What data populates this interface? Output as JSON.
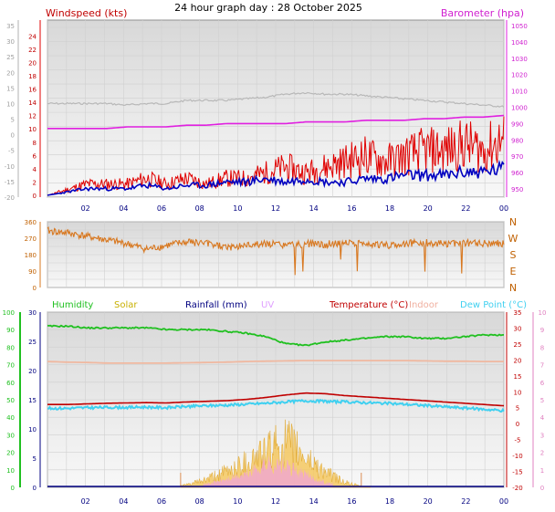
{
  "title": "24 hour graph day : 28 October 2025",
  "colors": {
    "wind": "#e00000",
    "wind_avg": "#0000c0",
    "baro": "#e020e0",
    "temp_shadow": "#b8b8b8",
    "dir": "#d87820",
    "humidity": "#20c020",
    "solar": "#c8b000",
    "rain": "#000080",
    "uv": "#e0a0ff",
    "temperature": "#c00000",
    "indoor": "#f0b8a0",
    "dew": "#40d0f0",
    "grid": "#d0d0d0",
    "panel": "#e8e8e8",
    "axis_left": "#a0a0a0"
  },
  "chart_data": [
    {
      "type": "line",
      "title": "24 hour graph day : 28 October 2025",
      "x_ticks": [
        "02",
        "04",
        "06",
        "08",
        "10",
        "12",
        "14",
        "16",
        "18",
        "20",
        "22",
        "00"
      ],
      "panel_left_label": "Windspeed (kts)",
      "panel_right_label": "Barometer (hpa)",
      "y_left_wind": {
        "ticks": [
          "24",
          "22",
          "20",
          "18",
          "16",
          "14",
          "12",
          "10",
          "8",
          "6",
          "4",
          "2",
          "0"
        ],
        "range": [
          0,
          25
        ]
      },
      "y_left_temp": {
        "ticks": [
          "35",
          "30",
          "25",
          "20",
          "15",
          "10",
          "5",
          "0",
          "-5",
          "-10",
          "-15",
          "-20"
        ],
        "range": [
          -20,
          35
        ]
      },
      "y_right_baro": {
        "ticks": [
          "1050",
          "1040",
          "1030",
          "1020",
          "1010",
          "1000",
          "990",
          "980",
          "970",
          "960",
          "950"
        ],
        "range": [
          945,
          1050
        ]
      },
      "series": [
        {
          "role": "wind_gust",
          "values": [
            0,
            1,
            2,
            2,
            2,
            3,
            2,
            3,
            2,
            3,
            3,
            4,
            5,
            4,
            5,
            6,
            7,
            6,
            7,
            8,
            8,
            9,
            8,
            10
          ]
        },
        {
          "role": "wind_avg",
          "values": [
            0,
            0.5,
            1,
            1,
            1,
            1.5,
            1,
            1.5,
            1.5,
            2,
            2,
            2.5,
            2,
            2.5,
            2,
            2,
            2.5,
            2.5,
            3,
            3,
            3,
            3.5,
            3.5,
            4
          ]
        },
        {
          "role": "baro",
          "values": [
            987,
            987,
            987,
            987,
            988,
            988,
            988,
            989,
            989,
            990,
            990,
            990,
            990,
            991,
            991,
            991,
            992,
            992,
            992,
            993,
            993,
            994,
            994,
            995
          ]
        },
        {
          "role": "temp_trace",
          "values": [
            10,
            10,
            10,
            10,
            9.5,
            10,
            10,
            11,
            11,
            11,
            11.5,
            12,
            13,
            13.5,
            13,
            13,
            12.5,
            12,
            11.5,
            11,
            10.5,
            10,
            9.5,
            9
          ]
        }
      ]
    },
    {
      "type": "scatter",
      "y_left_ticks": [
        "360",
        "270",
        "180",
        "90",
        "0"
      ],
      "y_right_ticks": [
        "N",
        "W",
        "S",
        "E",
        "N"
      ],
      "x_ticks": [
        "02",
        "04",
        "06",
        "08",
        "10",
        "12",
        "14",
        "16",
        "18",
        "20",
        "22",
        "00"
      ],
      "series": [
        {
          "role": "wind_dir",
          "values": [
            310,
            300,
            280,
            260,
            240,
            210,
            230,
            250,
            240,
            220,
            230,
            240,
            230,
            240,
            235,
            250,
            240,
            230,
            240,
            245,
            240,
            245,
            240,
            240
          ]
        }
      ]
    },
    {
      "type": "area",
      "labels": {
        "humidity": "Humidity",
        "solar": "Solar",
        "rainfall": "Rainfall (mm)",
        "uv": "UV",
        "temperature": "Temperature (°C)",
        "indoor": "Indoor",
        "dew": "Dew Point (°C)"
      },
      "y_left_hum": [
        "100",
        "90",
        "80",
        "70",
        "60",
        "50",
        "40",
        "30",
        "20",
        "10",
        "0"
      ],
      "y_left_rain": [
        "30",
        "25",
        "20",
        "15",
        "10",
        "5",
        "0"
      ],
      "y_right_temp": [
        "35",
        "30",
        "25",
        "20",
        "15",
        "10",
        "5",
        "0",
        "-5",
        "-10",
        "-15",
        "-20"
      ],
      "y_right_uv": [
        "10",
        "9",
        "8",
        "7",
        "6",
        "5",
        "4",
        "3",
        "2",
        "1",
        "0"
      ],
      "x_ticks": [
        "02",
        "04",
        "06",
        "08",
        "10",
        "12",
        "14",
        "16",
        "18",
        "20",
        "22",
        "00"
      ],
      "series": [
        {
          "role": "humidity",
          "values": [
            92,
            92,
            91,
            91,
            91,
            91,
            90,
            90,
            90,
            89,
            88,
            86,
            82,
            81,
            83,
            84,
            85,
            86,
            86,
            85,
            85,
            86,
            87,
            87
          ]
        },
        {
          "role": "indoor",
          "values": [
            19.5,
            19.3,
            19.2,
            19.0,
            19.0,
            19.0,
            19.0,
            19.1,
            19.2,
            19.3,
            19.5,
            19.6,
            19.7,
            19.8,
            19.8,
            19.8,
            19.8,
            19.8,
            19.8,
            19.7,
            19.6,
            19.6,
            19.5,
            19.5
          ]
        },
        {
          "role": "temperature",
          "values": [
            6,
            6,
            6.2,
            6.4,
            6.5,
            6.6,
            6.5,
            6.8,
            7.0,
            7.2,
            7.6,
            8.2,
            9.0,
            9.6,
            9.4,
            8.8,
            8.4,
            8.0,
            7.6,
            7.2,
            6.8,
            6.4,
            6.0,
            5.6
          ]
        },
        {
          "role": "dew",
          "values": [
            4.8,
            4.8,
            5.0,
            5.1,
            5.1,
            5.2,
            5.0,
            5.4,
            5.6,
            5.8,
            6.1,
            6.4,
            6.8,
            7.2,
            7.0,
            6.8,
            6.6,
            6.4,
            6.1,
            5.7,
            5.3,
            4.9,
            4.5,
            4.1
          ]
        },
        {
          "role": "solar",
          "values": [
            0,
            0,
            0,
            0,
            0,
            0,
            0,
            0.5,
            1.5,
            3,
            5,
            7,
            9,
            6,
            3,
            1,
            0,
            0,
            0,
            0,
            0,
            0,
            0,
            0
          ]
        },
        {
          "role": "uv",
          "values": [
            0,
            0,
            0,
            0,
            0,
            0,
            0,
            0,
            0.2,
            0.5,
            0.8,
            1.5,
            1.3,
            0.8,
            0.3,
            0.1,
            0,
            0,
            0,
            0,
            0,
            0,
            0,
            0
          ]
        },
        {
          "role": "rain",
          "values": [
            0,
            0,
            0,
            0,
            0,
            0,
            0,
            0,
            0,
            0,
            0,
            0,
            0,
            0,
            0,
            0,
            0,
            0,
            0,
            0,
            0,
            0,
            0,
            0
          ]
        }
      ]
    }
  ]
}
